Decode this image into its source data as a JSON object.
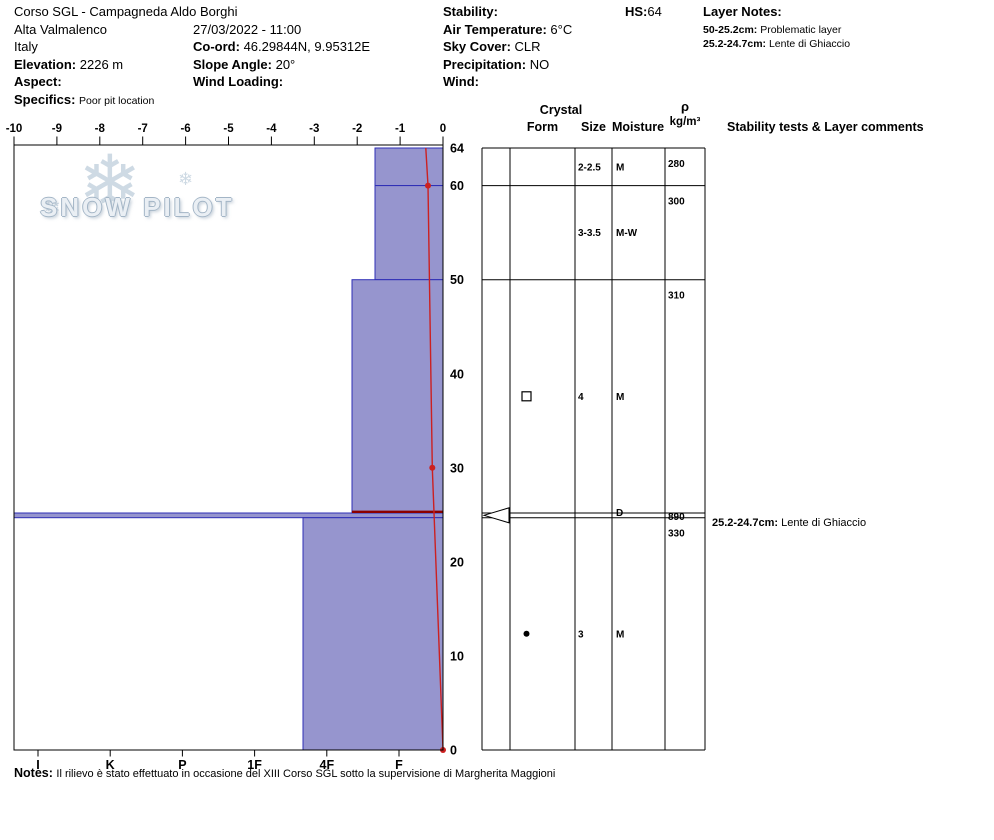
{
  "header": {
    "title": "Corso SGL - Campagneda Aldo Borghi",
    "location": "Alta Valmalenco",
    "country": "Italy",
    "elevation": {
      "label": "Elevation:",
      "value": "2226 m"
    },
    "aspect": {
      "label": "Aspect:",
      "value": ""
    },
    "specifics": {
      "label": "Specifics:",
      "value": "Poor pit location"
    },
    "datetime": "27/03/2022 - 11:00",
    "coordinates": {
      "label": "Co-ord:",
      "value": "46.29844N, 9.95312E"
    },
    "slope_angle": {
      "label": "Slope Angle:",
      "value": "20°"
    },
    "wind_loading": {
      "label": "Wind Loading:",
      "value": ""
    },
    "stability": {
      "label": "Stability:",
      "value": ""
    },
    "air_temperature": {
      "label": "Air Temperature:",
      "value": "6°C"
    },
    "sky_cover": {
      "label": "Sky Cover:",
      "value": "CLR"
    },
    "precipitation": {
      "label": "Precipitation:",
      "value": "NO"
    },
    "wind": {
      "label": "Wind:",
      "value": ""
    },
    "hs": {
      "label": "HS:",
      "value": "64"
    },
    "layer_notes": {
      "label": "Layer Notes:",
      "items": [
        {
          "range": "50-25.2cm:",
          "text": "Problematic layer"
        },
        {
          "range": "25.2-24.7cm:",
          "text": "Lente di Ghiaccio"
        }
      ]
    }
  },
  "watermark": "SNOW PILOT",
  "table": {
    "crystal_header": "Crystal",
    "form_header": "Form",
    "size_header": "Size",
    "moisture_header": "Moisture",
    "rho_symbol": "ρ",
    "rho_unit": "kg/m³",
    "comments_header": "Stability tests & Layer comments"
  },
  "chart_data": {
    "type": "snow-profile",
    "title": "Snow pit hardness / temperature profile",
    "depth_axis": {
      "unit": "cm",
      "max": 64,
      "labels": [
        64,
        60,
        50,
        40,
        30,
        20,
        10,
        0
      ]
    },
    "temperature_axis": {
      "unit": "°C",
      "min": -10,
      "max": 0,
      "ticks": [
        "-10",
        "-9",
        "-8",
        "-7",
        "-6",
        "-5",
        "-4",
        "-3",
        "-2",
        "-1",
        "0"
      ]
    },
    "hardness_axis": {
      "ticks": [
        "I",
        "K",
        "P",
        "1F",
        "4F",
        "F"
      ]
    },
    "layers": [
      {
        "top_cm": 64,
        "bottom_cm": 60,
        "hardness": "F",
        "extent_frac": 0.1585,
        "form": "",
        "size": "2-2.5",
        "moisture": "M",
        "density": "280",
        "comment_range": "",
        "comment_text": ""
      },
      {
        "top_cm": 60,
        "bottom_cm": 50,
        "hardness": "F",
        "extent_frac": 0.1585,
        "form": "",
        "size": "3-3.5",
        "moisture": "M-W",
        "density": "300",
        "comment_range": "",
        "comment_text": ""
      },
      {
        "top_cm": 50,
        "bottom_cm": 25.2,
        "hardness": "F-4F",
        "extent_frac": 0.2121,
        "form": "square-outline",
        "size": "4",
        "moisture": "M",
        "density": "310",
        "comment_range": "",
        "comment_text": ""
      },
      {
        "top_cm": 25.2,
        "bottom_cm": 24.7,
        "hardness": "I",
        "extent_frac": 1.0,
        "form": "",
        "size": "",
        "moisture": "D",
        "density": "890",
        "comment_range": "25.2-24.7cm:",
        "comment_text": "Lente di Ghiaccio"
      },
      {
        "top_cm": 24.7,
        "bottom_cm": 0,
        "hardness": "4F",
        "extent_frac": 0.3263,
        "form": "circle-filled",
        "size": "3",
        "moisture": "M",
        "density": "330",
        "comment_range": "",
        "comment_text": ""
      }
    ],
    "flagged_layer": {
      "top_cm": 25.2,
      "bottom_cm": 24.7,
      "extent_frac": 0.2121
    },
    "temperature_profile": [
      {
        "depth_cm": 64,
        "temp_c": -0.4,
        "dot": false
      },
      {
        "depth_cm": 60,
        "temp_c": -0.35,
        "dot": true
      },
      {
        "depth_cm": 30,
        "temp_c": -0.25,
        "dot": true
      },
      {
        "depth_cm": 0,
        "temp_c": 0,
        "dot": true
      }
    ]
  },
  "notes": {
    "label": "Notes:",
    "text": "Il rilievo è stato effettuato in occasione del XIII Corso SGL sotto la supervisione di Margherita Maggioni"
  },
  "colors": {
    "bar_fill": "#9695ce",
    "bar_stroke": "#2f2fb6",
    "temp_line": "#cc2020",
    "flag_line": "#8b0000",
    "watermark": "#aabccc"
  }
}
